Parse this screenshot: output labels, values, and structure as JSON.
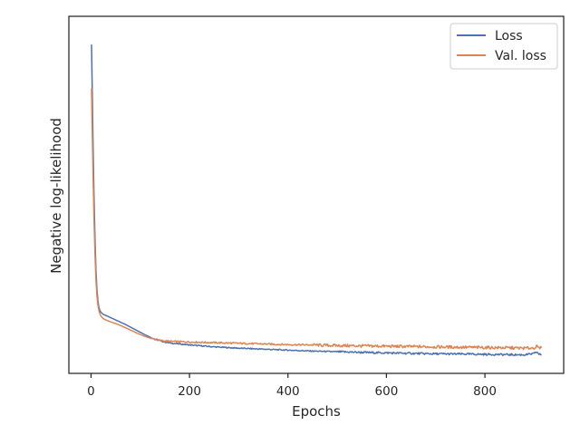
{
  "chart_data": {
    "type": "line",
    "xlabel": "Epochs",
    "ylabel": "Negative log-likelihood",
    "xlim": [
      -45,
      960
    ],
    "ylim": [
      0,
      1
    ],
    "xticks": [
      0,
      200,
      400,
      600,
      800
    ],
    "yticks_shown": false,
    "grid": false,
    "legend": {
      "placement": "top-right"
    },
    "series": [
      {
        "name": "Loss",
        "color": "#4c72b0",
        "x": [
          1,
          2,
          4,
          6,
          8,
          10,
          12,
          14,
          16,
          18,
          20,
          25,
          30,
          40,
          50,
          60,
          70,
          80,
          90,
          100,
          110,
          120,
          130,
          140,
          150,
          160,
          180,
          200,
          250,
          300,
          350,
          400,
          450,
          500,
          550,
          600,
          650,
          700,
          750,
          800,
          850,
          880,
          900,
          905,
          910,
          915
        ],
        "y": [
          0.955,
          0.86,
          0.66,
          0.49,
          0.36,
          0.26,
          0.2,
          0.165,
          0.145,
          0.135,
          0.13,
          0.123,
          0.12,
          0.113,
          0.106,
          0.099,
          0.092,
          0.084,
          0.076,
          0.068,
          0.06,
          0.053,
          0.047,
          0.042,
          0.038,
          0.035,
          0.032,
          0.029,
          0.023,
          0.019,
          0.016,
          0.013,
          0.01,
          0.008,
          0.006,
          0.0045,
          0.003,
          0.0015,
          0.001,
          0.0,
          -0.001,
          -0.0015,
          0.002,
          0.008,
          0.0,
          -0.001
        ]
      },
      {
        "name": "Val. loss",
        "color": "#dd8452",
        "x": [
          1,
          2,
          4,
          6,
          8,
          10,
          12,
          14,
          16,
          18,
          20,
          25,
          30,
          40,
          50,
          60,
          70,
          80,
          90,
          100,
          110,
          120,
          130,
          140,
          150,
          160,
          180,
          200,
          250,
          300,
          350,
          400,
          450,
          500,
          550,
          600,
          650,
          700,
          750,
          800,
          850,
          880,
          900,
          905,
          910,
          915
        ],
        "y": [
          0.82,
          0.73,
          0.56,
          0.42,
          0.31,
          0.23,
          0.18,
          0.152,
          0.135,
          0.125,
          0.118,
          0.11,
          0.106,
          0.1,
          0.095,
          0.089,
          0.082,
          0.075,
          0.068,
          0.061,
          0.055,
          0.05,
          0.046,
          0.043,
          0.041,
          0.04,
          0.039,
          0.038,
          0.036,
          0.034,
          0.032,
          0.03,
          0.029,
          0.027,
          0.026,
          0.025,
          0.024,
          0.023,
          0.022,
          0.021,
          0.02,
          0.019,
          0.02,
          0.024,
          0.019,
          0.02
        ]
      }
    ]
  }
}
